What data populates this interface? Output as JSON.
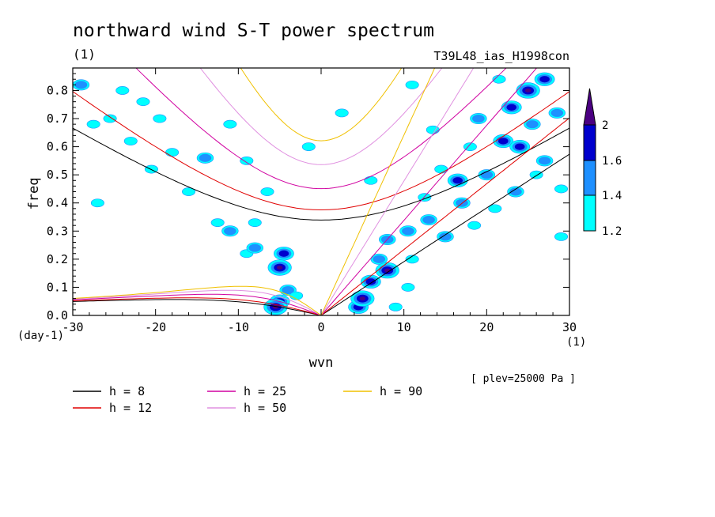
{
  "chart_data": {
    "type": "heatmap",
    "title": "northward wind S-T power spectrum",
    "units_label": "(1)",
    "experiment": "T39L48_ias_H1998con",
    "xlabel": "wvn",
    "ylabel": "freq",
    "x_unit_label": "(1)",
    "y_unit_label": "(day-1)",
    "xlim": [
      -30,
      30
    ],
    "ylim": [
      0,
      0.88
    ],
    "x_ticks": [
      -30,
      -20,
      -10,
      0,
      10,
      20,
      30
    ],
    "x_tick_labels": [
      "-30",
      "-20",
      "-10",
      "0",
      "10",
      "20",
      "30"
    ],
    "y_ticks": [
      0,
      0.1,
      0.2,
      0.3,
      0.4,
      0.5,
      0.6,
      0.7,
      0.8
    ],
    "y_tick_labels": [
      "0.0",
      "0.1",
      "0.2",
      "0.3",
      "0.4",
      "0.5",
      "0.6",
      "0.7",
      "0.8"
    ],
    "plev_note": "[ plev=25000 Pa ]",
    "colorbar": {
      "levels": [
        1.2,
        1.4,
        1.6,
        2
      ],
      "labels": [
        "1.2",
        "1.4",
        "1.6",
        "2"
      ],
      "colors": [
        "#00ffff",
        "#1e90ff",
        "#0000cd",
        "#4b0082"
      ]
    },
    "dispersion_curves": [
      {
        "h": 8,
        "label": "h =  8",
        "color": "#000000"
      },
      {
        "h": 12,
        "label": "h = 12",
        "color": "#e00000"
      },
      {
        "h": 25,
        "label": "h = 25",
        "color": "#d000a0"
      },
      {
        "h": 50,
        "label": "h = 50",
        "color": "#e090e0"
      },
      {
        "h": 90,
        "label": "h = 90",
        "color": "#f0c000"
      }
    ],
    "blobs": [
      {
        "x": -29.0,
        "y": 0.82,
        "level": 2
      },
      {
        "x": -27.5,
        "y": 0.68,
        "level": 1
      },
      {
        "x": -25.5,
        "y": 0.7,
        "level": 1
      },
      {
        "x": -24.0,
        "y": 0.8,
        "level": 1
      },
      {
        "x": -23.0,
        "y": 0.62,
        "level": 1
      },
      {
        "x": -21.5,
        "y": 0.76,
        "level": 1
      },
      {
        "x": -19.5,
        "y": 0.7,
        "level": 1
      },
      {
        "x": -18.0,
        "y": 0.58,
        "level": 1
      },
      {
        "x": -16.0,
        "y": 0.44,
        "level": 1
      },
      {
        "x": -14.0,
        "y": 0.56,
        "level": 2
      },
      {
        "x": -12.5,
        "y": 0.33,
        "level": 1
      },
      {
        "x": -11.0,
        "y": 0.68,
        "level": 1
      },
      {
        "x": -9.0,
        "y": 0.55,
        "level": 1
      },
      {
        "x": -8.0,
        "y": 0.33,
        "level": 1
      },
      {
        "x": -6.5,
        "y": 0.44,
        "level": 1
      },
      {
        "x": -11.0,
        "y": 0.3,
        "level": 2
      },
      {
        "x": -9.0,
        "y": 0.22,
        "level": 1
      },
      {
        "x": -8.0,
        "y": 0.24,
        "level": 2
      },
      {
        "x": -4.5,
        "y": 0.22,
        "level": 3
      },
      {
        "x": -5.0,
        "y": 0.17,
        "level": 4
      },
      {
        "x": -4.0,
        "y": 0.09,
        "level": 2
      },
      {
        "x": -5.0,
        "y": 0.05,
        "level": 3
      },
      {
        "x": -5.5,
        "y": 0.03,
        "level": 4
      },
      {
        "x": -3.0,
        "y": 0.07,
        "level": 1
      },
      {
        "x": 4.5,
        "y": 0.03,
        "level": 3
      },
      {
        "x": 5.0,
        "y": 0.06,
        "level": 4
      },
      {
        "x": 6.0,
        "y": 0.12,
        "level": 3
      },
      {
        "x": 7.0,
        "y": 0.2,
        "level": 2
      },
      {
        "x": 8.0,
        "y": 0.27,
        "level": 2
      },
      {
        "x": 8.0,
        "y": 0.16,
        "level": 4
      },
      {
        "x": 10.5,
        "y": 0.3,
        "level": 2
      },
      {
        "x": 11.0,
        "y": 0.2,
        "level": 1
      },
      {
        "x": 12.5,
        "y": 0.42,
        "level": 1
      },
      {
        "x": 13.0,
        "y": 0.34,
        "level": 2
      },
      {
        "x": 14.5,
        "y": 0.52,
        "level": 1
      },
      {
        "x": 15.0,
        "y": 0.28,
        "level": 2
      },
      {
        "x": 16.5,
        "y": 0.48,
        "level": 3
      },
      {
        "x": 17.0,
        "y": 0.4,
        "level": 2
      },
      {
        "x": 18.0,
        "y": 0.6,
        "level": 1
      },
      {
        "x": 19.0,
        "y": 0.7,
        "level": 2
      },
      {
        "x": 20.0,
        "y": 0.5,
        "level": 2
      },
      {
        "x": 21.5,
        "y": 0.84,
        "level": 1
      },
      {
        "x": 22.0,
        "y": 0.62,
        "level": 3
      },
      {
        "x": 23.0,
        "y": 0.74,
        "level": 3
      },
      {
        "x": 24.0,
        "y": 0.6,
        "level": 3
      },
      {
        "x": 25.0,
        "y": 0.8,
        "level": 4
      },
      {
        "x": 25.5,
        "y": 0.68,
        "level": 2
      },
      {
        "x": 27.0,
        "y": 0.84,
        "level": 3
      },
      {
        "x": 27.0,
        "y": 0.55,
        "level": 2
      },
      {
        "x": 28.5,
        "y": 0.72,
        "level": 2
      },
      {
        "x": 29.0,
        "y": 0.45,
        "level": 1
      },
      {
        "x": 18.5,
        "y": 0.32,
        "level": 1
      },
      {
        "x": 21.0,
        "y": 0.38,
        "level": 1
      },
      {
        "x": 23.5,
        "y": 0.44,
        "level": 2
      },
      {
        "x": 26.0,
        "y": 0.5,
        "level": 1
      },
      {
        "x": 29.0,
        "y": 0.28,
        "level": 1
      },
      {
        "x": 10.5,
        "y": 0.1,
        "level": 1
      },
      {
        "x": 9.0,
        "y": 0.03,
        "level": 1
      },
      {
        "x": -27.0,
        "y": 0.4,
        "level": 1
      },
      {
        "x": -20.5,
        "y": 0.52,
        "level": 1
      },
      {
        "x": -1.5,
        "y": 0.6,
        "level": 1
      },
      {
        "x": 2.5,
        "y": 0.72,
        "level": 1
      },
      {
        "x": 6.0,
        "y": 0.48,
        "level": 1
      },
      {
        "x": 11.0,
        "y": 0.82,
        "level": 1
      },
      {
        "x": 13.5,
        "y": 0.66,
        "level": 1
      }
    ]
  }
}
